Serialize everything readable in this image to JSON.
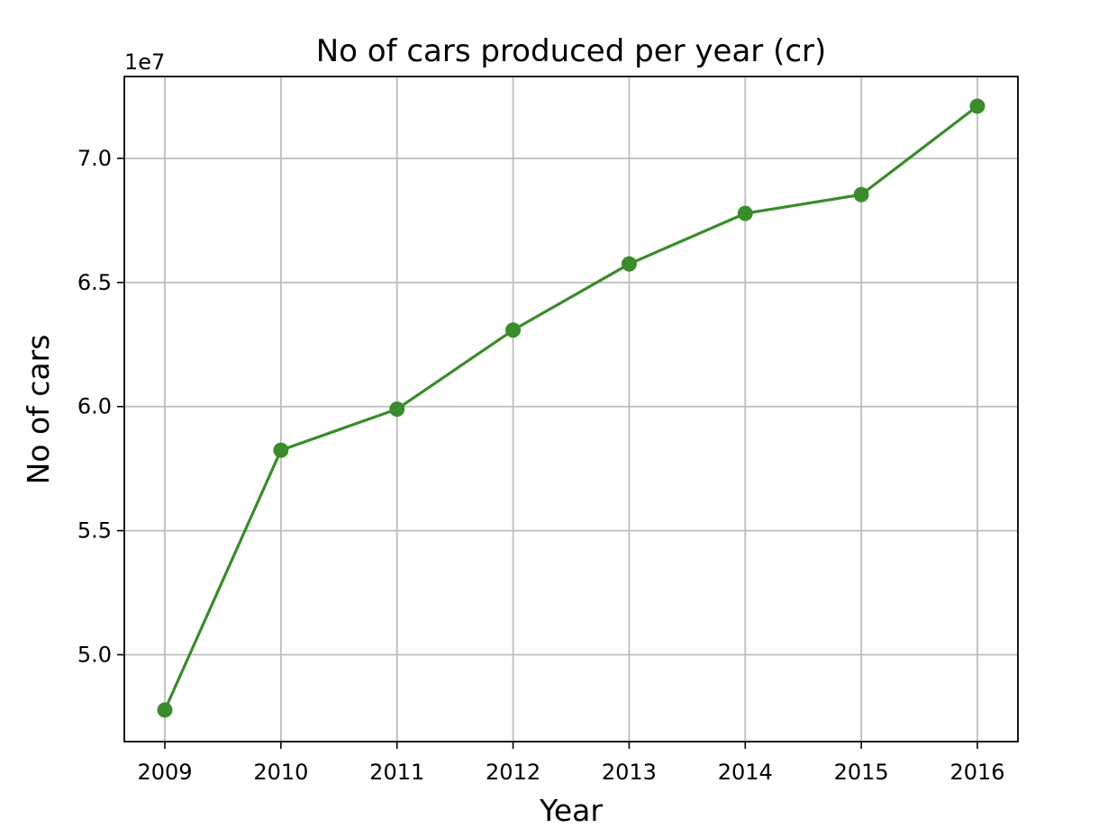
{
  "chart_data": {
    "type": "line",
    "title": "No of cars produced per year (cr)",
    "xlabel": "Year",
    "ylabel": "No of cars",
    "y_offset_label": "1e7",
    "x": [
      "2009",
      "2010",
      "2011",
      "2012",
      "2013",
      "2014",
      "2015",
      "2016"
    ],
    "series": [
      {
        "values": [
          47772000,
          58242000,
          59897000,
          63081000,
          65746000,
          67783000,
          68540000,
          72105000
        ],
        "color": "#3a8c2a",
        "marker": "circle"
      }
    ],
    "yticks": [
      50000000,
      55000000,
      60000000,
      65000000,
      70000000
    ],
    "ytick_labels": [
      "5.0",
      "5.5",
      "6.0",
      "6.5",
      "7.0"
    ],
    "ylim": [
      46500000,
      73300000
    ],
    "grid": true,
    "legend": "none"
  }
}
